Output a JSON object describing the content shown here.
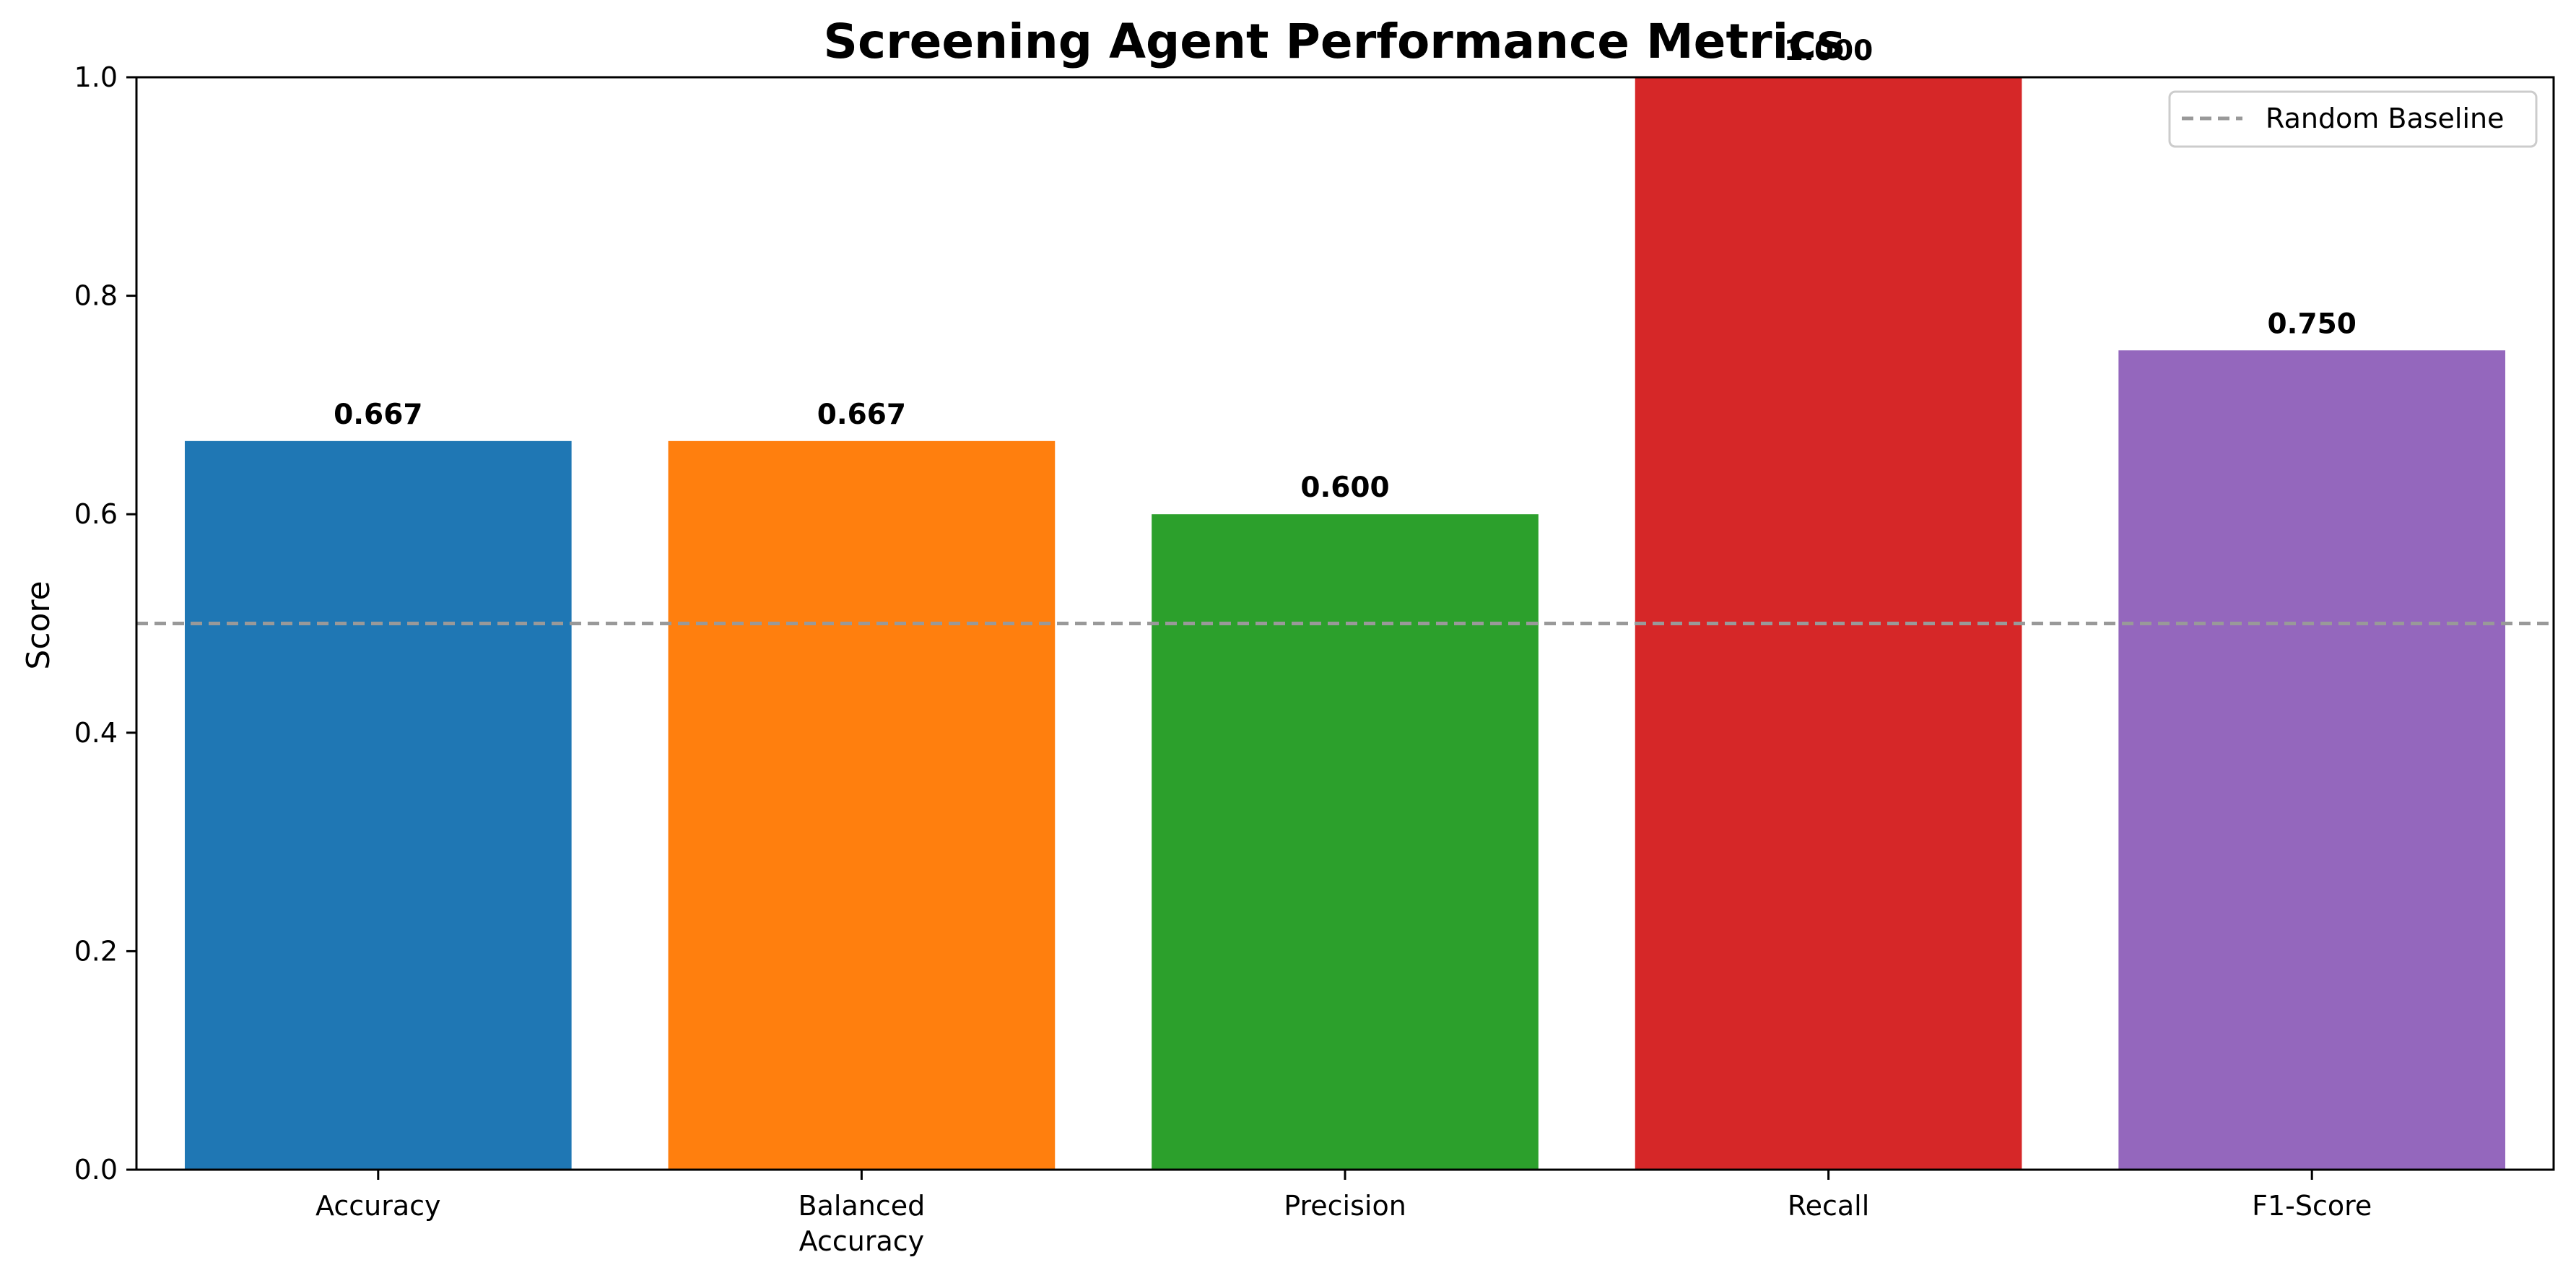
{
  "chart_data": {
    "type": "bar",
    "title": "Screening Agent Performance Metrics",
    "xlabel": "",
    "ylabel": "Score",
    "ylim": [
      0,
      1.0
    ],
    "yticks": [
      "0.0",
      "0.2",
      "0.4",
      "0.6",
      "0.8",
      "1.0"
    ],
    "categories": [
      [
        "Accuracy"
      ],
      [
        "Balanced",
        "Accuracy"
      ],
      [
        "Precision"
      ],
      [
        "Recall"
      ],
      [
        "F1-Score"
      ]
    ],
    "values": [
      0.667,
      0.667,
      0.6,
      1.0,
      0.75
    ],
    "data_labels": [
      "0.667",
      "0.667",
      "0.600",
      "1.000",
      "0.750"
    ],
    "colors": [
      "#1f77b4",
      "#ff7f0e",
      "#2ca02c",
      "#d62728",
      "#9467bd"
    ],
    "baseline": {
      "value": 0.5,
      "label": "Random Baseline",
      "color": "#999999",
      "style": "dashed"
    },
    "legend_position": "top-right",
    "grid": false
  }
}
